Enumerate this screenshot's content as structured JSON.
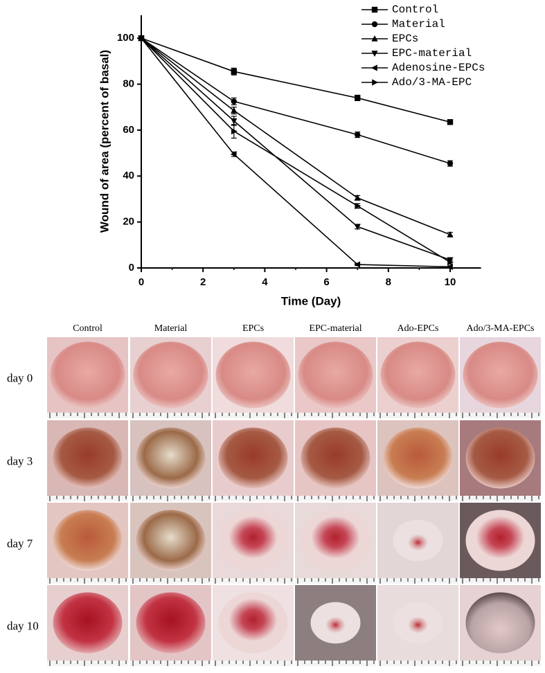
{
  "chart_data": {
    "type": "line",
    "xlabel": "Time (Day)",
    "ylabel": "Wound of area (percent of basal)",
    "x": [
      0,
      3,
      7,
      10
    ],
    "xlim": [
      0,
      11
    ],
    "xticks": [
      0,
      2,
      4,
      6,
      8,
      10
    ],
    "ylim": [
      0,
      110
    ],
    "yticks": [
      0,
      20,
      40,
      60,
      80,
      100
    ],
    "grid": false,
    "legend": "top-right",
    "series": [
      {
        "name": "Control",
        "color": "#000000",
        "marker": "square",
        "values": [
          100,
          85.5,
          74,
          63.5
        ],
        "errors": [
          0,
          1.5,
          1.2,
          1.0
        ]
      },
      {
        "name": "Material",
        "color": "#000000",
        "marker": "circle",
        "values": [
          100,
          72.5,
          58,
          45.5
        ],
        "errors": [
          0,
          1.5,
          1.2,
          1.2
        ]
      },
      {
        "name": "EPCs",
        "color": "#000000",
        "marker": "triangle-up",
        "values": [
          100,
          68.5,
          30.5,
          14.5
        ],
        "errors": [
          0,
          1.5,
          1.0,
          1.0
        ]
      },
      {
        "name": "EPC-material",
        "color": "#000000",
        "marker": "triangle-down",
        "values": [
          100,
          64,
          18,
          3.5
        ],
        "errors": [
          0,
          2,
          1.0,
          1.0
        ]
      },
      {
        "name": "Adenosine-EPCs",
        "color": "#000000",
        "marker": "triangle-left",
        "values": [
          100,
          49.5,
          1.5,
          0.5
        ],
        "errors": [
          0,
          1.0,
          0.5,
          0.5
        ]
      },
      {
        "name": "Ado/3-MA-EPC",
        "color": "#000000",
        "marker": "triangle-right",
        "values": [
          100,
          59.5,
          27,
          2.5
        ],
        "errors": [
          0,
          3,
          1.0,
          0.8
        ]
      }
    ]
  },
  "photo_grid": {
    "columns": [
      "Control",
      "Material",
      "EPCs",
      "EPC-material",
      "Ado-EPCs",
      "Ado/3-MA-EPCs"
    ],
    "rows": [
      "day 0",
      "day 3",
      "day 7",
      "day 10"
    ]
  }
}
